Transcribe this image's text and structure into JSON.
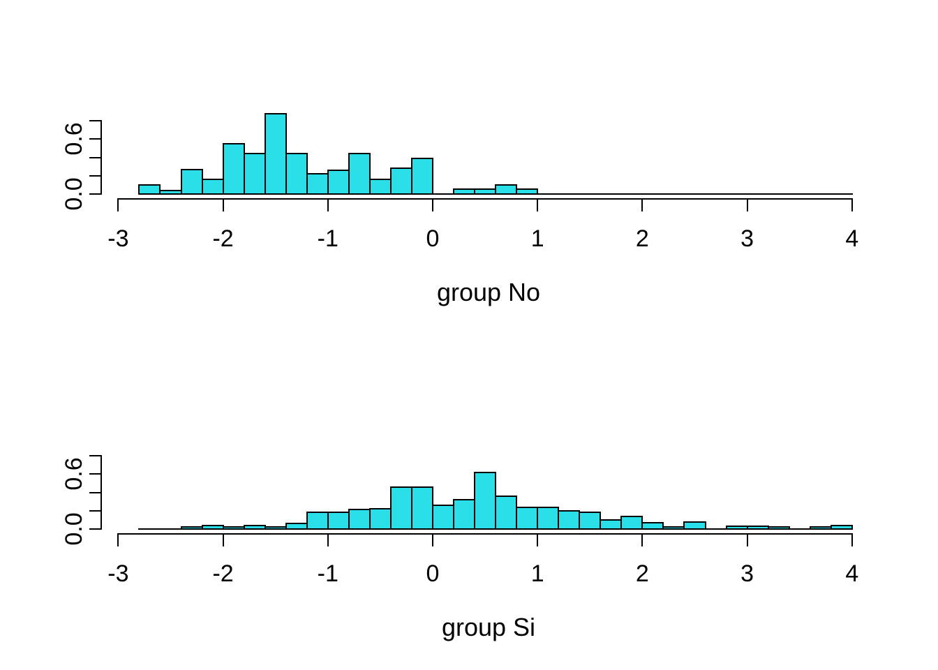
{
  "figure": {
    "background": "#ffffff",
    "text_color": "#000000"
  },
  "chart_data": [
    {
      "type": "bar",
      "subtype": "histogram-density",
      "xlabel": "group No",
      "ylabel": "",
      "title": "",
      "bar_fill": "#2BDFE8",
      "bar_border": "#000000",
      "bin_start": -2.8,
      "bin_width": 0.2,
      "densities": [
        0.1,
        0.04,
        0.27,
        0.16,
        0.55,
        0.44,
        0.88,
        0.44,
        0.22,
        0.26,
        0.44,
        0.16,
        0.28,
        0.39,
        0,
        0.05,
        0.05,
        0.1,
        0.05,
        0,
        0,
        0,
        0,
        0,
        0,
        0,
        0,
        0,
        0,
        0,
        0,
        0,
        0,
        0
      ],
      "x_ticks": [
        -3,
        -2,
        -1,
        0,
        1,
        2,
        3,
        4
      ],
      "x_tick_labels": [
        "-3",
        "-2",
        "-1",
        "0",
        "1",
        "2",
        "3",
        "4"
      ],
      "y_ticks": [
        0,
        0.2,
        0.4,
        0.6,
        0.8
      ],
      "y_tick_labels": [
        "0.0",
        "",
        "",
        "0.6",
        ""
      ],
      "xlim": [
        -3,
        4
      ],
      "ylim": [
        0,
        0.8
      ],
      "baseline_extent": [
        -2.8,
        4.0
      ],
      "grid": false,
      "legend": false
    },
    {
      "type": "bar",
      "subtype": "histogram-density",
      "xlabel": "group Si",
      "ylabel": "",
      "title": "",
      "bar_fill": "#2BDFE8",
      "bar_border": "#000000",
      "bin_start": -2.8,
      "bin_width": 0.2,
      "densities": [
        0,
        0,
        0.02,
        0.04,
        0.02,
        0.04,
        0.02,
        0.06,
        0.18,
        0.18,
        0.21,
        0.22,
        0.46,
        0.46,
        0.26,
        0.32,
        0.62,
        0.36,
        0.24,
        0.24,
        0.2,
        0.18,
        0.1,
        0.14,
        0.07,
        0.02,
        0.08,
        0,
        0.03,
        0.03,
        0.02,
        0,
        0.02,
        0.04
      ],
      "x_ticks": [
        -3,
        -2,
        -1,
        0,
        1,
        2,
        3,
        4
      ],
      "x_tick_labels": [
        "-3",
        "-2",
        "-1",
        "0",
        "1",
        "2",
        "3",
        "4"
      ],
      "y_ticks": [
        0,
        0.2,
        0.4,
        0.6,
        0.8
      ],
      "y_tick_labels": [
        "0.0",
        "",
        "",
        "0.6",
        ""
      ],
      "xlim": [
        -3,
        4
      ],
      "ylim": [
        0,
        0.8
      ],
      "baseline_extent": [
        -2.8,
        4.0
      ],
      "grid": false,
      "legend": false
    }
  ]
}
